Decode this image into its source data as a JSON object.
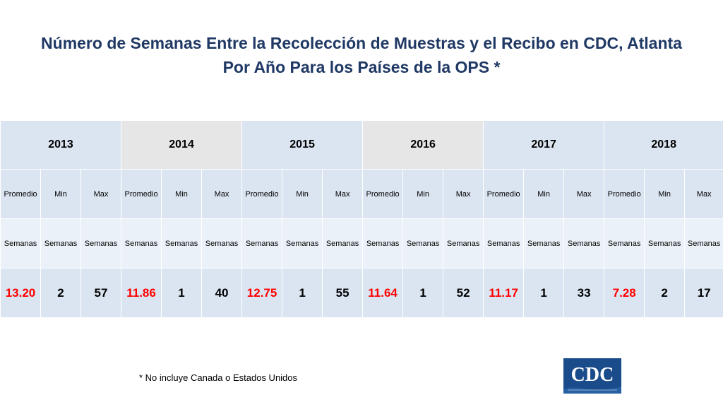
{
  "title": {
    "line1": "Número de Semanas Entre la Recolección de Muestras y el Recibo en CDC, Atlanta",
    "line2": "Por Año Para los Países de la OPS *"
  },
  "table": {
    "years": [
      "2013",
      "2014",
      "2015",
      "2016",
      "2017",
      "2018"
    ],
    "labels": {
      "promedio": "Promedio",
      "min": "Min",
      "max": "Max"
    },
    "unit": "Semanas",
    "rows": [
      {
        "promedio": "13.20",
        "min": "2",
        "max": "57"
      },
      {
        "promedio": "11.86",
        "min": "1",
        "max": "40"
      },
      {
        "promedio": "12.75",
        "min": "1",
        "max": "55"
      },
      {
        "promedio": "11.64",
        "min": "1",
        "max": "52"
      },
      {
        "promedio": "11.17",
        "min": "1",
        "max": "33"
      },
      {
        "promedio": "7.28",
        "min": "2",
        "max": "17"
      }
    ]
  },
  "footnote": "* No incluye Canada o Estados Unidos",
  "logo": {
    "text": "CDC",
    "color": "#1a4c8b"
  },
  "colors": {
    "title": "#1f3864",
    "average_value": "#ff0000",
    "cell_light": "#dbe5f1",
    "cell_gray": "#e6e6e6"
  }
}
